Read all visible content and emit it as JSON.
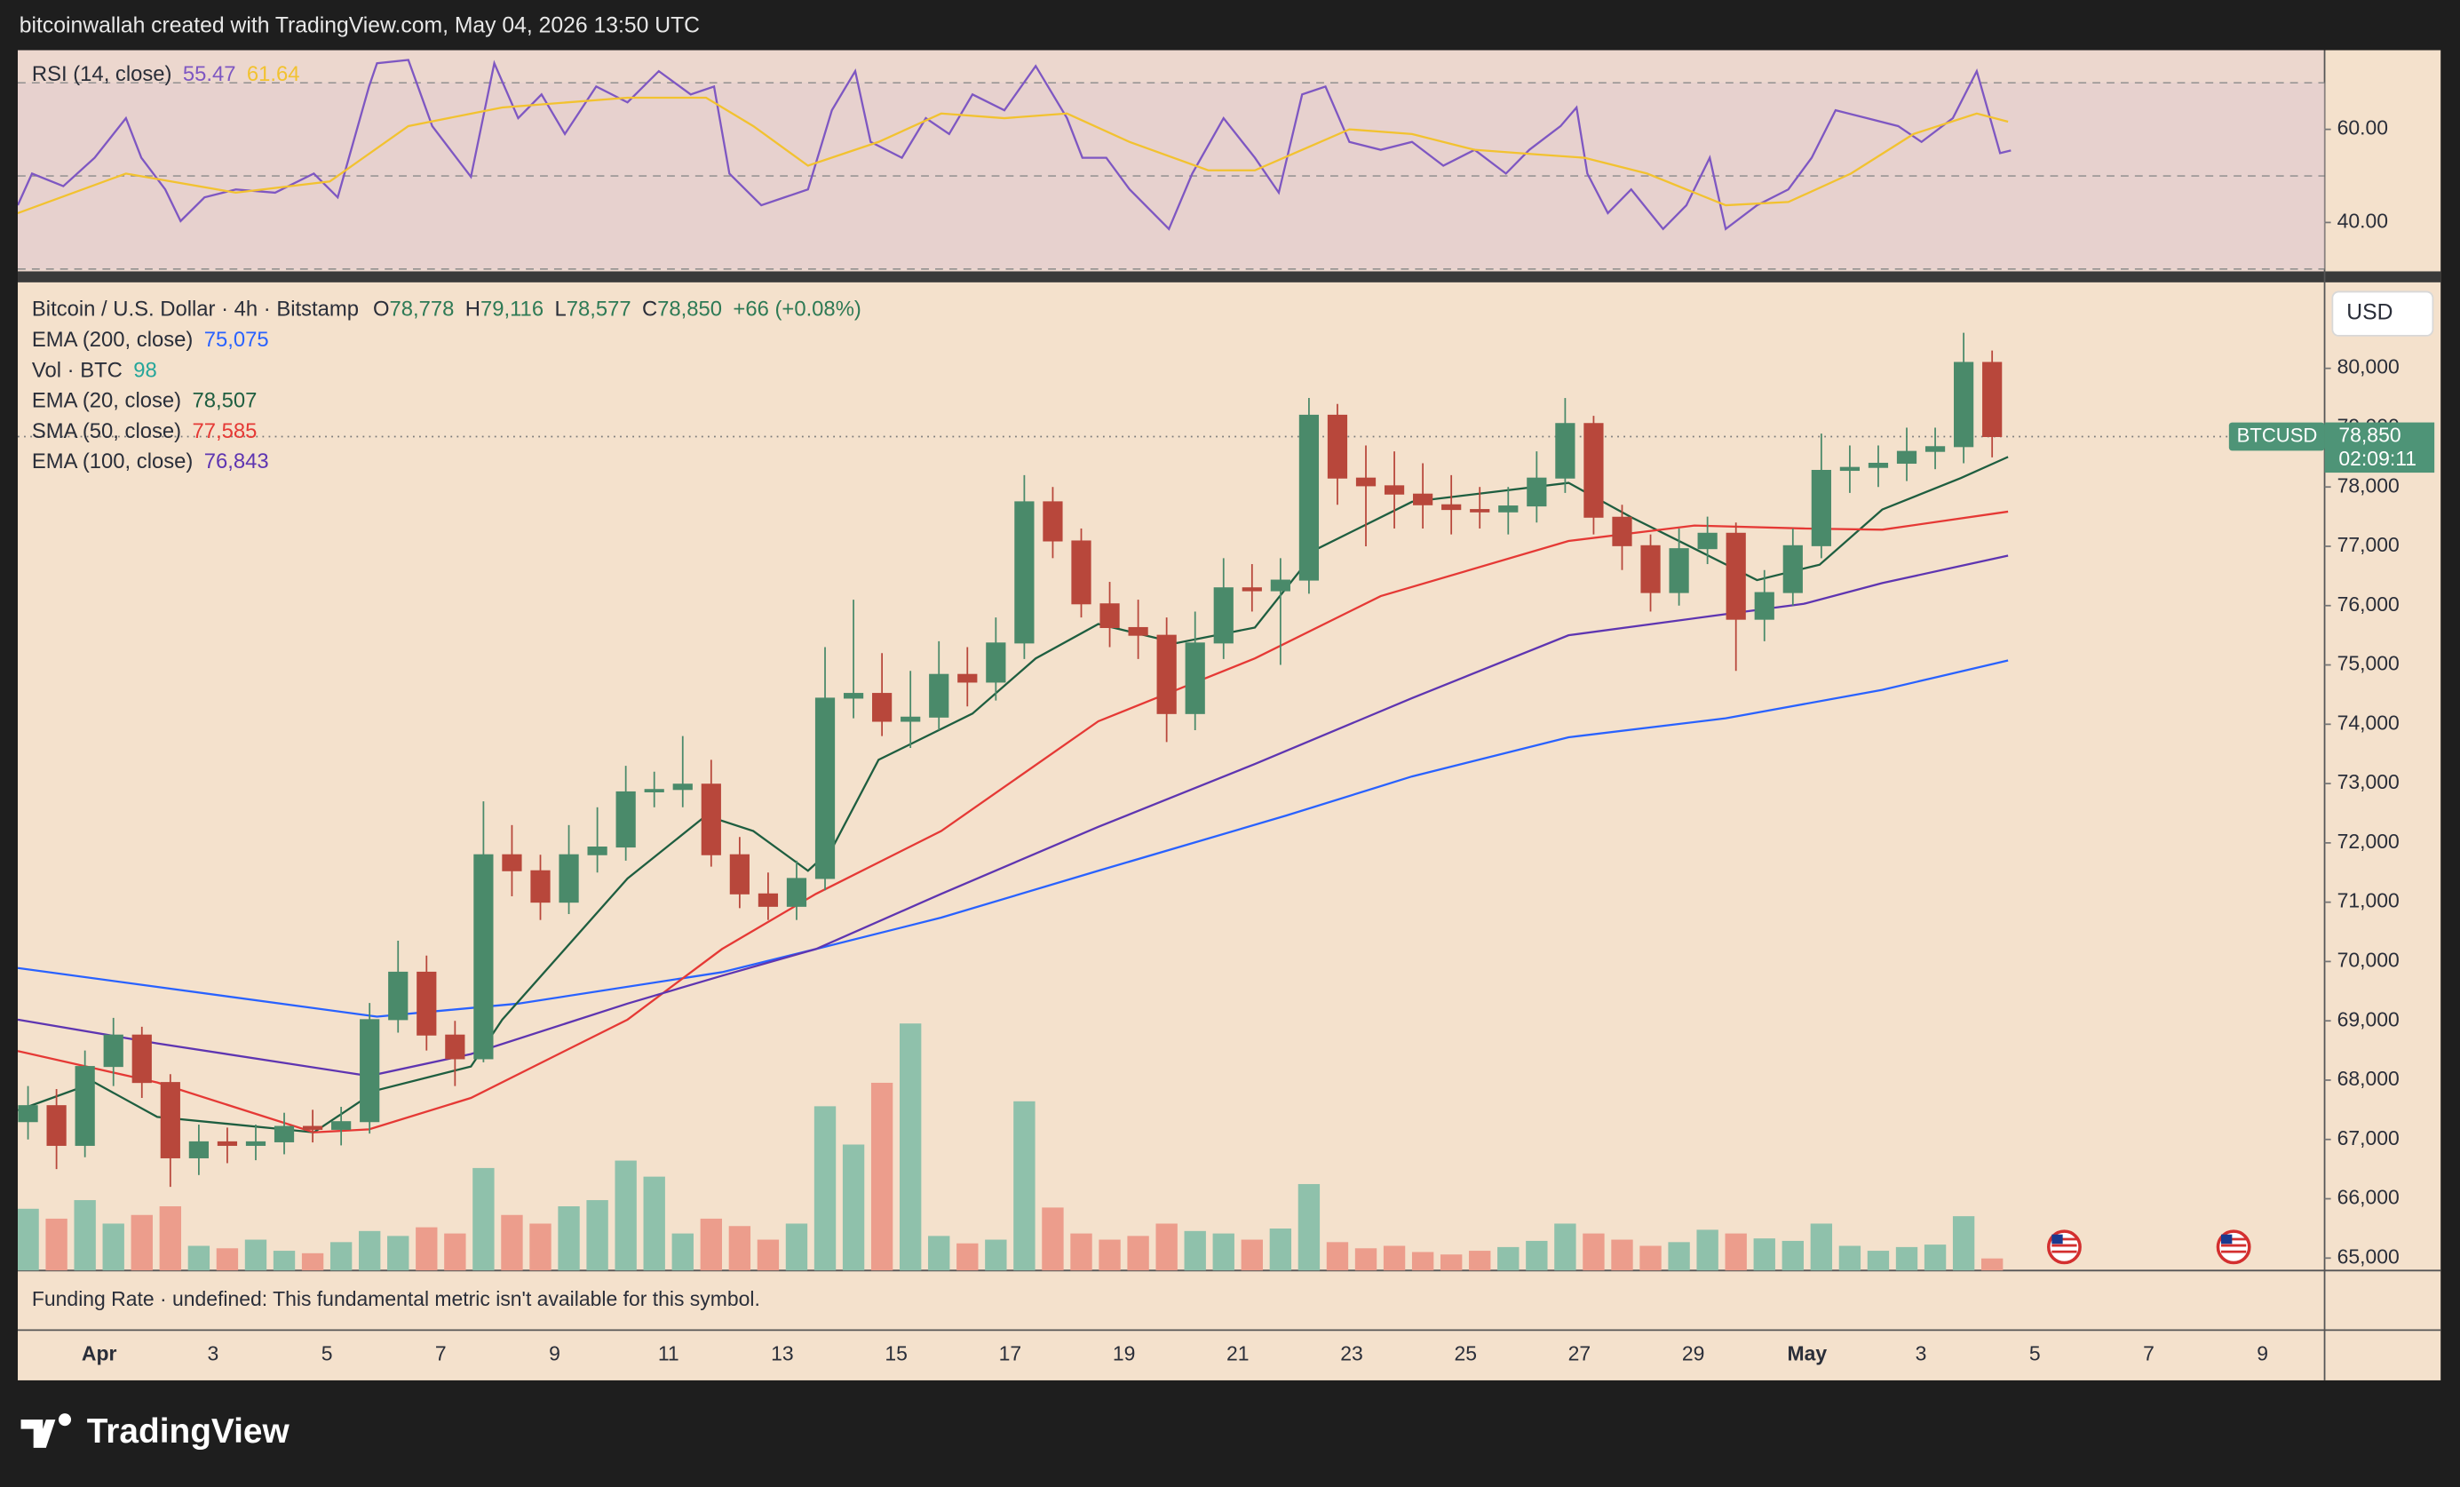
{
  "header": "bitcoinwallah created with TradingView.com, May 04, 2026 13:50 UTC",
  "footer": "TradingView",
  "chart_data": [
    {
      "type": "candlestick",
      "title": "Bitcoin / U.S. Dollar · 4h · Bitstamp",
      "ohlc_legend": [
        {
          "key": "O",
          "value": "78,778"
        },
        {
          "key": "H",
          "value": "79,116"
        },
        {
          "key": "L",
          "value": "78,577"
        },
        {
          "key": "C",
          "value": "78,850"
        }
      ],
      "change": "+66 (+0.08%)",
      "currency": "USD",
      "price_tag": {
        "symbol": "BTCUSD",
        "price": "78,850",
        "countdown": "02:09:11"
      },
      "last_price": 78850,
      "note": "Funding Rate · undefined: This fundamental metric isn't available for this symbol.",
      "up_color": "#4a8a6a",
      "down_color": "#b8473b",
      "volume_up_color": "#8fc1ab",
      "volume_down_color": "#ec9d8c",
      "volume_name": "Vol · BTC",
      "volume_color": "#26a69a",
      "xlim": [
        -1.43,
        39.09
      ],
      "ylim": [
        64790,
        81450
      ],
      "vlim": [
        0,
        8000
      ],
      "grid": false,
      "yticks": [
        {
          "value": 65000,
          "label": "65,000"
        },
        {
          "value": 66000,
          "label": "66,000"
        },
        {
          "value": 67000,
          "label": "67,000"
        },
        {
          "value": 68000,
          "label": "68,000"
        },
        {
          "value": 69000,
          "label": "69,000"
        },
        {
          "value": 70000,
          "label": "70,000"
        },
        {
          "value": 71000,
          "label": "71,000"
        },
        {
          "value": 72000,
          "label": "72,000"
        },
        {
          "value": 73000,
          "label": "73,000"
        },
        {
          "value": 74000,
          "label": "74,000"
        },
        {
          "value": 75000,
          "label": "75,000"
        },
        {
          "value": 76000,
          "label": "76,000"
        },
        {
          "value": 77000,
          "label": "77,000"
        },
        {
          "value": 78000,
          "label": "78,000"
        },
        {
          "value": 79000,
          "label": "79,000"
        },
        {
          "value": 80000,
          "label": "80,000"
        }
      ],
      "xticks": [
        {
          "value": 0,
          "label": "Apr"
        },
        {
          "value": 2,
          "label": "3"
        },
        {
          "value": 4,
          "label": "5"
        },
        {
          "value": 6,
          "label": "7"
        },
        {
          "value": 8,
          "label": "9"
        },
        {
          "value": 10,
          "label": "11"
        },
        {
          "value": 12,
          "label": "13"
        },
        {
          "value": 14,
          "label": "15"
        },
        {
          "value": 16,
          "label": "17"
        },
        {
          "value": 18,
          "label": "19"
        },
        {
          "value": 20,
          "label": "21"
        },
        {
          "value": 22,
          "label": "23"
        },
        {
          "value": 24,
          "label": "25"
        },
        {
          "value": 26,
          "label": "27"
        },
        {
          "value": 28,
          "label": "29"
        },
        {
          "value": 30,
          "label": "May"
        },
        {
          "value": 32,
          "label": "3"
        },
        {
          "value": 34,
          "label": "5"
        },
        {
          "value": 36,
          "label": "7"
        },
        {
          "value": 38,
          "label": "9"
        }
      ],
      "x": [
        -1.25,
        -0.75,
        -0.25,
        0.25,
        0.75,
        1.25,
        1.75,
        2.25,
        2.75,
        3.25,
        3.75,
        4.25,
        4.75,
        5.25,
        5.75,
        6.25,
        6.75,
        7.25,
        7.75,
        8.25,
        8.75,
        9.25,
        9.75,
        10.25,
        10.75,
        11.25,
        11.75,
        12.25,
        12.75,
        13.25,
        13.75,
        14.25,
        14.75,
        15.25,
        15.75,
        16.25,
        16.75,
        17.25,
        17.75,
        18.25,
        18.75,
        19.25,
        19.75,
        20.25,
        20.75,
        21.25,
        21.75,
        22.25,
        22.75,
        23.25,
        23.75,
        24.25,
        24.75,
        25.25,
        25.75,
        26.25,
        26.75,
        27.25,
        27.75,
        28.25,
        28.75,
        29.25,
        29.75,
        30.25,
        30.75,
        31.25,
        31.75,
        32.25,
        32.75,
        33.25
      ],
      "open": [
        67300,
        67570,
        66900,
        68230,
        68760,
        67960,
        66690,
        66960,
        66900,
        66960,
        67220,
        67170,
        67300,
        69020,
        69820,
        68760,
        68360,
        71800,
        71530,
        71000,
        71800,
        71930,
        72860,
        72900,
        72990,
        71800,
        71140,
        70930,
        71400,
        74440,
        74520,
        74050,
        74120,
        74840,
        74710,
        75370,
        77750,
        77090,
        76030,
        75630,
        75500,
        74180,
        75370,
        76300,
        76250,
        76430,
        79210,
        78150,
        78020,
        77880,
        77700,
        77620,
        77580,
        77680,
        78150,
        79070,
        77490,
        77010,
        76220,
        76960,
        77220,
        75770,
        76220,
        77010,
        78280,
        78330,
        78400,
        78600,
        78680,
        80100
      ],
      "high": [
        67900,
        67850,
        68500,
        69050,
        68900,
        68100,
        67250,
        67200,
        67250,
        67450,
        67500,
        67550,
        69300,
        70350,
        70100,
        69000,
        72700,
        72300,
        71800,
        72300,
        72600,
        73300,
        73200,
        73800,
        73400,
        72100,
        71500,
        71700,
        75300,
        76100,
        75200,
        74900,
        75400,
        75300,
        75800,
        78200,
        78000,
        77300,
        76400,
        76100,
        75800,
        75900,
        76800,
        76700,
        76800,
        79500,
        79400,
        78700,
        78600,
        78400,
        78200,
        78000,
        78000,
        78600,
        79500,
        79200,
        77700,
        77200,
        77300,
        77500,
        77400,
        76600,
        77300,
        78900,
        78700,
        78700,
        79000,
        79000,
        80600,
        80300
      ],
      "low": [
        67000,
        66500,
        66700,
        67900,
        67700,
        66200,
        66400,
        66600,
        66650,
        66750,
        66950,
        66900,
        67100,
        68800,
        68500,
        67900,
        68300,
        71100,
        70700,
        70800,
        71500,
        71700,
        72600,
        72600,
        71600,
        70900,
        70700,
        70700,
        71200,
        74100,
        73800,
        73600,
        73900,
        74300,
        74400,
        75100,
        76800,
        75800,
        75300,
        75100,
        73700,
        73900,
        75100,
        75900,
        75000,
        76200,
        77700,
        77000,
        77300,
        77300,
        77200,
        77300,
        77200,
        77400,
        77900,
        77200,
        76600,
        75900,
        76000,
        76700,
        74900,
        75400,
        76000,
        76800,
        77900,
        78000,
        78100,
        78300,
        78400,
        78500
      ],
      "close": [
        67570,
        66900,
        68230,
        68760,
        67960,
        66690,
        66960,
        66900,
        66960,
        67220,
        67170,
        67300,
        69020,
        69820,
        68760,
        68360,
        71800,
        71530,
        71000,
        71800,
        71930,
        72860,
        72900,
        72990,
        71800,
        71140,
        70930,
        71400,
        74440,
        74520,
        74050,
        74120,
        74840,
        74710,
        75370,
        77750,
        77090,
        76030,
        75630,
        75500,
        74180,
        75370,
        76300,
        76250,
        76430,
        79210,
        78150,
        78020,
        77880,
        77700,
        77620,
        77580,
        77680,
        78150,
        79070,
        77490,
        77010,
        76220,
        76960,
        77220,
        75770,
        76220,
        77010,
        78280,
        78330,
        78400,
        78600,
        78680,
        80100,
        78850
      ],
      "volume": [
        500,
        420,
        570,
        380,
        450,
        520,
        200,
        180,
        250,
        160,
        140,
        230,
        320,
        280,
        350,
        300,
        830,
        450,
        380,
        520,
        570,
        890,
        760,
        300,
        420,
        360,
        250,
        380,
        1330,
        1020,
        1520,
        2000,
        280,
        220,
        250,
        1370,
        510,
        300,
        250,
        280,
        380,
        320,
        300,
        250,
        340,
        700,
        230,
        180,
        200,
        150,
        130,
        160,
        190,
        240,
        380,
        300,
        250,
        200,
        230,
        330,
        300,
        260,
        240,
        380,
        200,
        160,
        190,
        210,
        440,
        98
      ],
      "series": [
        {
          "name": "EMA (200, close)",
          "color": "#2962ff",
          "value_label": "75,075",
          "x": [
            -1.43,
            4.88,
            7.36,
            10.94,
            12.59,
            14.79,
            17.55,
            20.85,
            23.06,
            25.81,
            28.57,
            31.32,
            33.53
          ],
          "values": [
            69890,
            69070,
            69290,
            69820,
            70210,
            70740,
            71530,
            72460,
            73120,
            73780,
            74100,
            74580,
            75075
          ]
        },
        {
          "name": "EMA (20, close)",
          "color": "#1e5e40",
          "value_label": "78,507",
          "x": [
            -1.43,
            -0.08,
            1.02,
            3.77,
            4.88,
            6.53,
            7.08,
            9.28,
            10.66,
            11.49,
            12.45,
            12.87,
            13.69,
            15.34,
            16.45,
            17.55,
            18.93,
            20.3,
            21.4,
            23.06,
            25.81,
            26.91,
            28.02,
            29.12,
            30.22,
            31.32,
            32.7,
            33.53
          ],
          "values": [
            67490,
            67960,
            67380,
            67120,
            67830,
            68230,
            69020,
            71400,
            72460,
            72200,
            71530,
            71900,
            73400,
            74180,
            75110,
            75690,
            75370,
            75630,
            76960,
            77750,
            78070,
            77490,
            76960,
            76430,
            76690,
            77620,
            78150,
            78507
          ]
        },
        {
          "name": "SMA (50, close)",
          "color": "#e53935",
          "value_label": "77,585",
          "x": [
            -1.43,
            1.02,
            3.77,
            4.74,
            6.53,
            9.28,
            10.94,
            12.59,
            14.79,
            17.55,
            20.3,
            22.51,
            25.81,
            28.02,
            29.94,
            31.32,
            33.53
          ],
          "values": [
            68490,
            67960,
            67120,
            67170,
            67700,
            69020,
            70210,
            71140,
            72200,
            74050,
            75110,
            76160,
            77090,
            77350,
            77300,
            77280,
            77585
          ]
        },
        {
          "name": "EMA (100, close)",
          "color": "#5e35b1",
          "value_label": "76,843",
          "x": [
            -1.43,
            1.02,
            4.74,
            6.53,
            9.28,
            10.94,
            12.59,
            14.79,
            17.55,
            20.3,
            23.06,
            25.81,
            28.29,
            29.94,
            31.32,
            33.53
          ],
          "values": [
            69020,
            68620,
            68070,
            68440,
            69290,
            69760,
            70210,
            71140,
            72270,
            73330,
            74440,
            75500,
            75820,
            76030,
            76380,
            76843
          ]
        }
      ]
    },
    {
      "type": "line",
      "title": "RSI (14, close)",
      "ylim": [
        29.5,
        77
      ],
      "yticks": [
        {
          "value": 40,
          "label": "40.00"
        },
        {
          "value": 60,
          "label": "60.00"
        }
      ],
      "levels": [
        70,
        50,
        30
      ],
      "band_color": "#e6cfcf",
      "series": [
        {
          "color": "#7e57c2",
          "value_label": "55.47",
          "x": [
            -1.43,
            -1.18,
            -0.63,
            -0.08,
            0.47,
            0.74,
            1.16,
            1.43,
            1.85,
            2.4,
            3.09,
            3.77,
            4.19,
            4.74,
            4.88,
            5.43,
            5.85,
            6.53,
            6.94,
            7.36,
            7.77,
            8.18,
            8.73,
            9.28,
            9.83,
            10.39,
            10.8,
            11.07,
            11.63,
            12.04,
            12.45,
            12.87,
            13.28,
            13.55,
            14.1,
            14.52,
            14.93,
            15.34,
            15.9,
            16.45,
            17.0,
            17.27,
            17.69,
            18.1,
            18.79,
            19.2,
            19.75,
            20.3,
            20.72,
            21.13,
            21.54,
            21.96,
            22.51,
            23.06,
            23.61,
            24.16,
            24.71,
            25.12,
            25.67,
            25.95,
            26.14,
            26.5,
            26.91,
            27.47,
            27.88,
            28.29,
            28.57,
            29.12,
            29.67,
            30.08,
            30.5,
            31.05,
            31.6,
            32.01,
            32.56,
            32.98,
            33.39,
            33.58
          ],
          "values": [
            43.7,
            50.5,
            47.8,
            53.9,
            62.4,
            53.9,
            47.1,
            40.3,
            45.4,
            47.1,
            46.4,
            50.5,
            45.4,
            69.2,
            74.2,
            74.9,
            60.7,
            49.8,
            74.2,
            62.4,
            67.5,
            59,
            69.2,
            65.8,
            72.5,
            67.5,
            69.2,
            50.5,
            43.7,
            45.4,
            47.1,
            64.1,
            72.5,
            57.3,
            53.9,
            62.4,
            59,
            67.5,
            64.1,
            73.6,
            62.4,
            53.9,
            53.9,
            47.1,
            38.6,
            50.5,
            62.4,
            53.9,
            46.4,
            67.5,
            69.2,
            57.3,
            55.6,
            57.3,
            52.2,
            55.6,
            50.5,
            55.6,
            60.7,
            64.7,
            50.5,
            42,
            47.1,
            38.6,
            43.7,
            53.9,
            38.6,
            43.7,
            47.1,
            53.9,
            64.1,
            62.4,
            60.7,
            57.3,
            62.4,
            72.5,
            54.9,
            55.47
          ]
        },
        {
          "color": "#f2c230",
          "value_label": "61.64",
          "x": [
            -1.43,
            0.47,
            2.4,
            4.05,
            5.43,
            7.08,
            9.28,
            10.66,
            11.49,
            12.45,
            13.69,
            14.79,
            15.9,
            17.0,
            18.1,
            19.48,
            20.3,
            21.13,
            21.96,
            23.06,
            24.16,
            25.26,
            26.09,
            27.19,
            28.57,
            29.67,
            30.77,
            31.87,
            32.98,
            33.53
          ],
          "values": [
            42,
            50.5,
            46.4,
            48.8,
            60.7,
            64.7,
            66.8,
            66.8,
            60.7,
            52.2,
            57.3,
            63.4,
            62.4,
            63.4,
            57.3,
            51.2,
            51.2,
            55.6,
            60,
            59,
            55.6,
            54.6,
            53.9,
            50.5,
            43.7,
            44.4,
            50.5,
            59,
            63.4,
            61.64
          ]
        }
      ]
    }
  ]
}
